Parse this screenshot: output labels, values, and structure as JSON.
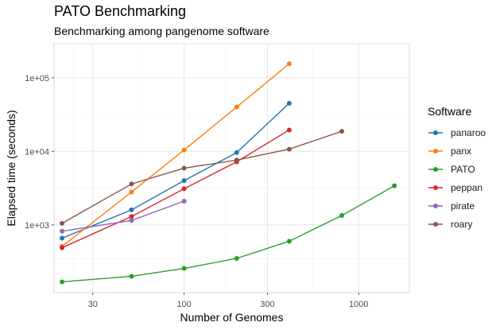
{
  "chart_data": {
    "type": "line",
    "title": "PATO Benchmarking",
    "subtitle": "Benchmarking among pangenome software",
    "xlabel": "Number of Genomes",
    "ylabel": "Elapsed time (seconds)",
    "x_scale": "log10",
    "y_scale": "log10",
    "xlim": [
      18,
      1950
    ],
    "ylim": [
      120,
      290000
    ],
    "x_ticks": [
      {
        "value": 30,
        "label": "30"
      },
      {
        "value": 100,
        "label": "100"
      },
      {
        "value": 300,
        "label": "300"
      },
      {
        "value": 1000,
        "label": "1000"
      }
    ],
    "y_ticks": [
      {
        "value": 1000,
        "label": "1e+03"
      },
      {
        "value": 10000,
        "label": "1e+04"
      },
      {
        "value": 100000,
        "label": "1e+05"
      }
    ],
    "grid": true,
    "legend": {
      "title": "Software",
      "position": "right"
    },
    "series": [
      {
        "name": "panaroo",
        "color": "#1f77b4",
        "points": [
          [
            20,
            660
          ],
          [
            50,
            1600
          ],
          [
            100,
            4000
          ],
          [
            200,
            9600
          ],
          [
            400,
            45000
          ]
        ]
      },
      {
        "name": "panx",
        "color": "#ff7f0e",
        "points": [
          [
            20,
            510
          ],
          [
            50,
            2800
          ],
          [
            100,
            10400
          ],
          [
            200,
            40000
          ],
          [
            400,
            155000
          ]
        ]
      },
      {
        "name": "PATO",
        "color": "#2ca02c",
        "points": [
          [
            20,
            168
          ],
          [
            50,
            200
          ],
          [
            100,
            256
          ],
          [
            200,
            350
          ],
          [
            400,
            600
          ],
          [
            800,
            1340
          ],
          [
            1600,
            3400
          ]
        ]
      },
      {
        "name": "peppan",
        "color": "#d62728",
        "points": [
          [
            20,
            490
          ],
          [
            50,
            1300
          ],
          [
            100,
            3100
          ],
          [
            200,
            7200
          ],
          [
            400,
            19500
          ]
        ]
      },
      {
        "name": "pirate",
        "color": "#9467bd",
        "points": [
          [
            20,
            820
          ],
          [
            50,
            1150
          ],
          [
            100,
            2100
          ]
        ]
      },
      {
        "name": "roary",
        "color": "#8c564b",
        "points": [
          [
            20,
            1050
          ],
          [
            50,
            3600
          ],
          [
            100,
            5900
          ],
          [
            200,
            7600
          ],
          [
            400,
            10700
          ],
          [
            800,
            18700
          ]
        ]
      }
    ]
  }
}
